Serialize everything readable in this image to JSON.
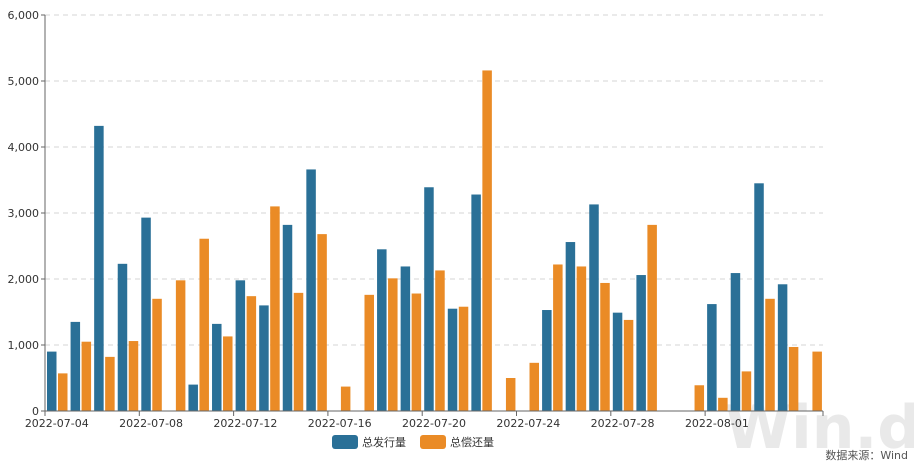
{
  "chart_data": {
    "type": "bar",
    "title": "",
    "xlabel": "",
    "ylabel": "",
    "ylim": [
      0,
      6000
    ],
    "y_ticks": [
      "0",
      "1,000",
      "2,000",
      "3,000",
      "4,000",
      "5,000",
      "6,000"
    ],
    "y_tick_values": [
      0,
      1000,
      2000,
      3000,
      4000,
      5000,
      6000
    ],
    "grid": "horizontal dashed",
    "legend_position": "bottom-center",
    "x_tick_labels": [
      "2022-07-04",
      "2022-07-08",
      "2022-07-12",
      "2022-07-16",
      "2022-07-20",
      "2022-07-24",
      "2022-07-28",
      "2022-08-01"
    ],
    "categories": [
      "2022-07-04",
      "2022-07-05",
      "2022-07-06",
      "2022-07-07",
      "2022-07-08",
      "2022-07-09",
      "2022-07-10",
      "2022-07-11",
      "2022-07-12",
      "2022-07-13",
      "2022-07-14",
      "2022-07-15",
      "2022-07-16",
      "2022-07-17",
      "2022-07-18",
      "2022-07-19",
      "2022-07-20",
      "2022-07-21",
      "2022-07-22",
      "2022-07-23",
      "2022-07-24",
      "2022-07-25",
      "2022-07-26",
      "2022-07-27",
      "2022-07-28",
      "2022-07-29",
      "2022-07-30",
      "2022-07-31",
      "2022-08-01",
      "2022-08-02",
      "2022-08-03",
      "2022-08-04",
      "2022-08-05"
    ],
    "series": [
      {
        "name": "总发行量",
        "color": "#2a7097",
        "values": [
          900,
          1350,
          4320,
          2230,
          2930,
          0,
          400,
          1320,
          1980,
          1600,
          2820,
          3660,
          0,
          0,
          2450,
          2190,
          3390,
          1550,
          3280,
          0,
          0,
          1530,
          2560,
          3130,
          1490,
          2060,
          0,
          0,
          1620,
          2090,
          3450,
          1920,
          0
        ]
      },
      {
        "name": "总偿还量",
        "color": "#ea8b26",
        "values": [
          570,
          1050,
          820,
          1060,
          1700,
          1980,
          2610,
          1130,
          1740,
          3100,
          1790,
          2680,
          370,
          1760,
          2010,
          1780,
          2130,
          1580,
          5160,
          500,
          730,
          2220,
          2190,
          1940,
          1380,
          2820,
          0,
          390,
          200,
          600,
          1700,
          970,
          900
        ]
      }
    ]
  },
  "source_text": "数据来源：Wind",
  "watermark_text": "Win.d"
}
